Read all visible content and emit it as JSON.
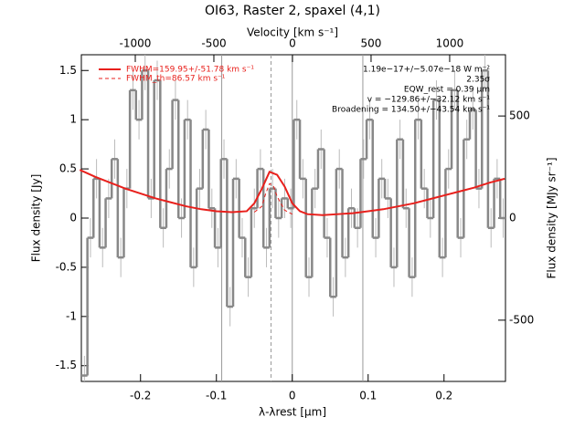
{
  "chart_data": {
    "type": "step",
    "title": "OI63, Raster 2, spaxel (4,1)",
    "x_label": "λ-λrest [µm]",
    "y_label": "Flux density [Jy]",
    "x2_label": "Velocity [km s⁻¹]",
    "y2_label": "Flux density [MJy sr⁻¹]",
    "xlim": [
      -0.278,
      0.281
    ],
    "xticks": [
      -0.2,
      -0.1,
      0.0,
      0.1,
      0.2
    ],
    "ylim": [
      -1.66,
      1.66
    ],
    "yticks": [
      -1.5,
      -1.0,
      -0.5,
      0.0,
      0.5,
      1.0,
      1.5
    ],
    "x2lim": [
      -1343,
      1355
    ],
    "x2ticks": [
      -1000,
      -500,
      0,
      500,
      1000
    ],
    "y2lim": [
      -800,
      800
    ],
    "y2ticks": [
      -500,
      0,
      500
    ],
    "vlines": [
      -0.093,
      0.0,
      0.093
    ],
    "line_center": -0.028,
    "spectrum": {
      "color": "#888888",
      "x": [
        -0.274,
        -0.266,
        -0.258,
        -0.25,
        -0.242,
        -0.234,
        -0.226,
        -0.218,
        -0.21,
        -0.202,
        -0.194,
        -0.186,
        -0.178,
        -0.17,
        -0.162,
        -0.154,
        -0.146,
        -0.138,
        -0.13,
        -0.122,
        -0.114,
        -0.106,
        -0.098,
        -0.09,
        -0.082,
        -0.074,
        -0.066,
        -0.058,
        -0.05,
        -0.042,
        -0.034,
        -0.026,
        -0.018,
        -0.01,
        -0.002,
        0.006,
        0.014,
        0.022,
        0.03,
        0.038,
        0.046,
        0.054,
        0.062,
        0.07,
        0.078,
        0.086,
        0.094,
        0.102,
        0.11,
        0.118,
        0.126,
        0.134,
        0.142,
        0.15,
        0.158,
        0.166,
        0.174,
        0.182,
        0.19,
        0.198,
        0.206,
        0.214,
        0.222,
        0.23,
        0.238,
        0.246,
        0.254,
        0.262,
        0.27,
        0.278
      ],
      "values": [
        -1.6,
        -0.2,
        0.4,
        -0.3,
        0.2,
        0.6,
        -0.4,
        0.3,
        1.3,
        1.0,
        1.5,
        0.2,
        1.4,
        -0.1,
        0.5,
        1.2,
        0.0,
        1.0,
        -0.5,
        0.3,
        0.9,
        0.1,
        -0.3,
        0.6,
        -0.9,
        0.4,
        -0.2,
        -0.6,
        0.1,
        0.5,
        -0.3,
        0.3,
        0.0,
        0.2,
        0.1,
        1.0,
        0.4,
        -0.6,
        0.3,
        0.7,
        -0.2,
        -0.8,
        0.5,
        -0.4,
        0.1,
        -0.1,
        0.6,
        1.0,
        -0.2,
        0.4,
        0.2,
        -0.5,
        0.8,
        0.1,
        -0.6,
        1.0,
        0.3,
        0.0,
        1.2,
        -0.4,
        0.5,
        1.3,
        -0.2,
        0.8,
        1.1,
        0.3,
        1.5,
        -0.1,
        0.4,
        0.0
      ],
      "errors": [
        0.2,
        0.2,
        0.2,
        0.2,
        0.2,
        0.2,
        0.2,
        0.2,
        0.2,
        0.2,
        0.2,
        0.2,
        0.2,
        0.2,
        0.2,
        0.2,
        0.2,
        0.2,
        0.2,
        0.2,
        0.2,
        0.2,
        0.2,
        0.2,
        0.2,
        0.2,
        0.2,
        0.2,
        0.2,
        0.2,
        0.2,
        0.2,
        0.2,
        0.2,
        0.2,
        0.2,
        0.2,
        0.2,
        0.2,
        0.2,
        0.2,
        0.2,
        0.2,
        0.2,
        0.2,
        0.2,
        0.2,
        0.2,
        0.2,
        0.2,
        0.2,
        0.2,
        0.2,
        0.2,
        0.2,
        0.2,
        0.2,
        0.2,
        0.2,
        0.2,
        0.2,
        0.2,
        0.2,
        0.2,
        0.2,
        0.2,
        0.2,
        0.2,
        0.2,
        0.2
      ]
    },
    "series": [
      {
        "name": "FWHM=159.95+/-51.78 km s⁻¹",
        "color": "#e8201c",
        "dash": false,
        "x": [
          -0.28,
          -0.26,
          -0.24,
          -0.22,
          -0.2,
          -0.18,
          -0.16,
          -0.14,
          -0.12,
          -0.1,
          -0.08,
          -0.06,
          -0.05,
          -0.04,
          -0.03,
          -0.02,
          -0.01,
          0.0,
          0.01,
          0.02,
          0.04,
          0.06,
          0.08,
          0.1,
          0.12,
          0.14,
          0.16,
          0.18,
          0.2,
          0.22,
          0.24,
          0.26,
          0.28
        ],
        "values": [
          0.49,
          0.42,
          0.36,
          0.3,
          0.25,
          0.2,
          0.16,
          0.12,
          0.09,
          0.07,
          0.06,
          0.07,
          0.15,
          0.3,
          0.47,
          0.44,
          0.32,
          0.15,
          0.07,
          0.04,
          0.03,
          0.04,
          0.05,
          0.07,
          0.09,
          0.12,
          0.15,
          0.19,
          0.23,
          0.27,
          0.31,
          0.36,
          0.4
        ]
      },
      {
        "name": "FWHM_th=86.57 km s⁻¹",
        "color": "#e8201c",
        "dash": true,
        "x": [
          -0.05,
          -0.04,
          -0.035,
          -0.03,
          -0.025,
          -0.02,
          -0.01,
          0.0
        ],
        "values": [
          0.06,
          0.12,
          0.25,
          0.35,
          0.33,
          0.22,
          0.08,
          0.04
        ]
      }
    ],
    "annotations": [
      "1.19e−17+/−5.07e−18 W m⁻²",
      "2.35σ",
      "EQW_rest = 0.39 µm",
      "v = −129.86+/−32.12 km s⁻¹",
      "Broadening = 134.50+/−43.54 km s⁻¹"
    ]
  }
}
